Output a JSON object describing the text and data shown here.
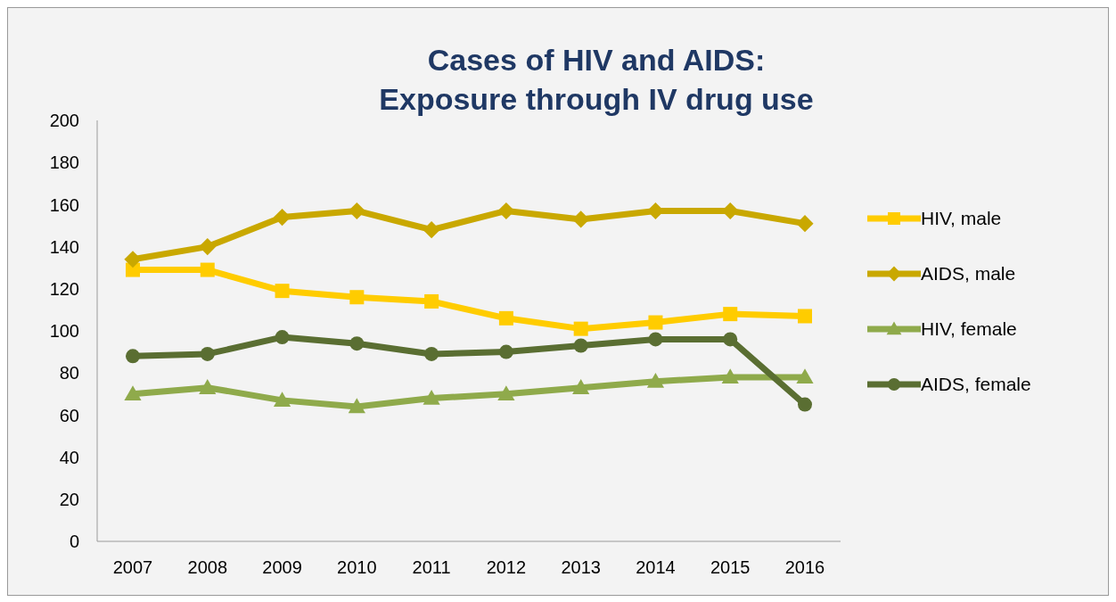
{
  "chart_data": {
    "type": "line",
    "title": "Cases of HIV and AIDS:\nExposure through IV drug use",
    "categories": [
      "2007",
      "2008",
      "2009",
      "2010",
      "2011",
      "2012",
      "2013",
      "2014",
      "2015",
      "2016"
    ],
    "series": [
      {
        "name": "HIV, male",
        "color": "#ffcc00",
        "marker": "square",
        "values": [
          129,
          129,
          119,
          116,
          114,
          106,
          101,
          104,
          108,
          107
        ]
      },
      {
        "name": "AIDS, male",
        "color": "#c9a800",
        "marker": "diamond",
        "values": [
          134,
          140,
          154,
          157,
          148,
          157,
          153,
          157,
          157,
          151
        ]
      },
      {
        "name": "HIV, female",
        "color": "#8faa4b",
        "marker": "triangle",
        "values": [
          70,
          73,
          67,
          64,
          68,
          70,
          73,
          76,
          78,
          78
        ]
      },
      {
        "name": "AIDS, female",
        "color": "#5a6e32",
        "marker": "circle",
        "values": [
          88,
          89,
          97,
          94,
          89,
          90,
          93,
          96,
          96,
          65
        ]
      }
    ],
    "ylim": [
      0,
      200
    ],
    "yticks": [
      0,
      20,
      40,
      60,
      80,
      100,
      120,
      140,
      160,
      180,
      200
    ],
    "grid": false,
    "legend": "right",
    "line_style": "solid"
  }
}
